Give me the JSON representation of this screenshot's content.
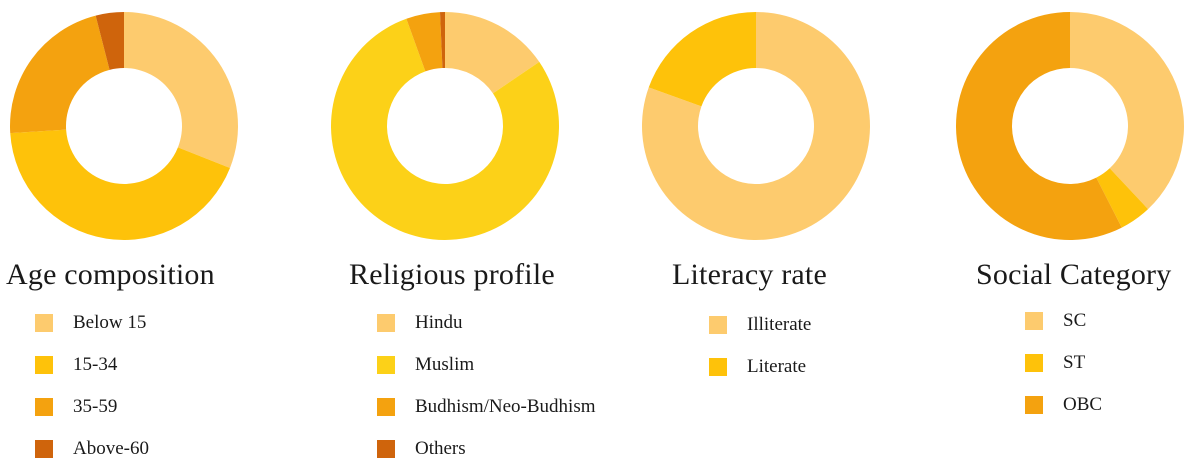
{
  "chart_data": [
    {
      "type": "pie",
      "variant": "donut",
      "title": "Age composition",
      "categories": [
        "Below 15",
        "15-34",
        "35-59",
        "Above-60"
      ],
      "values": [
        31,
        43,
        22,
        4
      ],
      "colors": [
        "#FDCB6E",
        "#FEC20A",
        "#F4A20F",
        "#CF640C"
      ]
    },
    {
      "type": "pie",
      "variant": "donut",
      "title": "Religious profile",
      "categories": [
        "Hindu",
        "Muslim",
        "Budhism/Neo-Budhism",
        "Others"
      ],
      "values": [
        15.5,
        79,
        4.8,
        0.7
      ],
      "colors": [
        "#FDCB6E",
        "#FCD118",
        "#F4A20F",
        "#CF640C"
      ]
    },
    {
      "type": "pie",
      "variant": "donut",
      "title": "Literacy rate",
      "categories": [
        "Illiterate",
        "Literate"
      ],
      "values": [
        80.5,
        19.5
      ],
      "colors": [
        "#FDCB6E",
        "#FEC20A"
      ]
    },
    {
      "type": "pie",
      "variant": "donut",
      "title": "Social Category",
      "categories": [
        "SC",
        "ST",
        "OBC"
      ],
      "values": [
        38,
        4.5,
        57.5
      ],
      "colors": [
        "#FDCB6E",
        "#FEC20A",
        "#F4A20F"
      ]
    }
  ]
}
